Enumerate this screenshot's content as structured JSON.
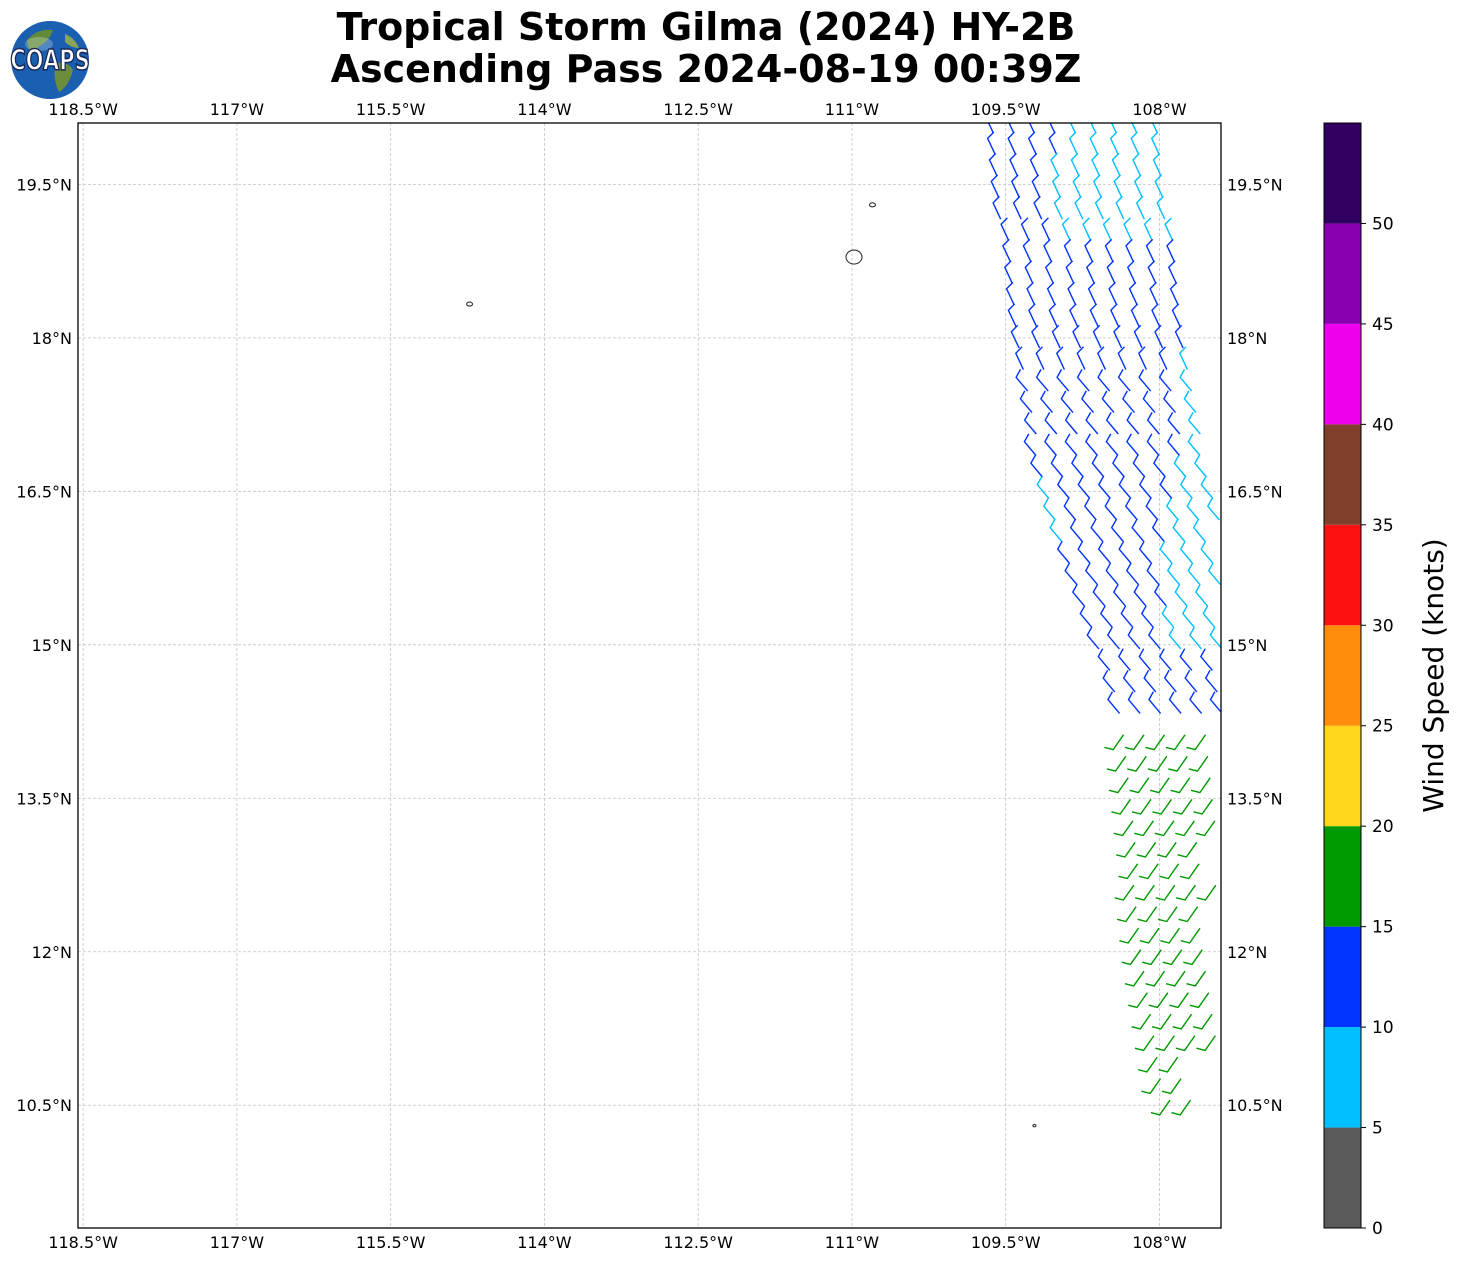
{
  "title": {
    "line1": "Tropical Storm Gilma (2024) HY-2B",
    "line2": "Ascending Pass 2024-08-19 00:39Z"
  },
  "logo": {
    "text": "COAPS",
    "icon": "globe-icon"
  },
  "map": {
    "lon_range": [
      -118.55,
      -107.4
    ],
    "lat_range": [
      9.3,
      20.1
    ],
    "lon_ticks": [
      {
        "value": -118.5,
        "label": "118.5°W"
      },
      {
        "value": -117,
        "label": "117°W"
      },
      {
        "value": -115.5,
        "label": "115.5°W"
      },
      {
        "value": -114,
        "label": "114°W"
      },
      {
        "value": -112.5,
        "label": "112.5°W"
      },
      {
        "value": -111,
        "label": "111°W"
      },
      {
        "value": -109.5,
        "label": "109.5°W"
      },
      {
        "value": -108,
        "label": "108°W"
      }
    ],
    "lat_ticks": [
      {
        "value": 19.5,
        "label": "19.5°N"
      },
      {
        "value": 18,
        "label": "18°N"
      },
      {
        "value": 16.5,
        "label": "16.5°N"
      },
      {
        "value": 15,
        "label": "15°N"
      },
      {
        "value": 13.5,
        "label": "13.5°N"
      },
      {
        "value": 12,
        "label": "12°N"
      },
      {
        "value": 10.5,
        "label": "10.5°N"
      }
    ],
    "grid": true,
    "islands": [
      {
        "lon": -110.98,
        "lat": 18.79,
        "size": "medium"
      },
      {
        "lon": -110.8,
        "lat": 19.3,
        "size": "small"
      },
      {
        "lon": -114.73,
        "lat": 18.33,
        "size": "small"
      },
      {
        "lon": -109.22,
        "lat": 10.3,
        "size": "tiny"
      }
    ]
  },
  "colorbar": {
    "label": "Wind Speed (knots)",
    "bounds": [
      0,
      5,
      10,
      15,
      20,
      25,
      30,
      35,
      40,
      45,
      50,
      55
    ],
    "tick_labels": [
      "0",
      "5",
      "10",
      "15",
      "20",
      "25",
      "30",
      "35",
      "40",
      "45",
      "50"
    ],
    "colors": [
      "#5a5a5a",
      "#00bfff",
      "#0033ff",
      "#009900",
      "#ffd619",
      "#ff8c0a",
      "#ff1111",
      "#7f3f2a",
      "#ee00ee",
      "#8800b0",
      "#300060"
    ]
  },
  "swath": {
    "regions": [
      {
        "lat_min": 9.0,
        "lat_max": 14.2,
        "speed": 17
      },
      {
        "lat_min": 14.2,
        "lat_max": 17.4,
        "speed": 12
      },
      {
        "lat_min": 17.4,
        "lat_max": 20.1,
        "speed": 11
      }
    ],
    "light_zones": [
      {
        "lat_min": 18.8,
        "lat_max": 20.1,
        "lon_min": -109.0,
        "speed": 8
      },
      {
        "lat_min": 16.4,
        "lat_max": 18.8,
        "lon_min": -107.75,
        "speed": 8
      },
      {
        "lat_min": 14.9,
        "lat_max": 16.4,
        "lon_min": -107.9,
        "speed": 8
      },
      {
        "lat_min": 15.9,
        "lat_max": 16.5,
        "lon_min": -109.2,
        "lon_max": -108.9,
        "speed": 8
      }
    ]
  }
}
